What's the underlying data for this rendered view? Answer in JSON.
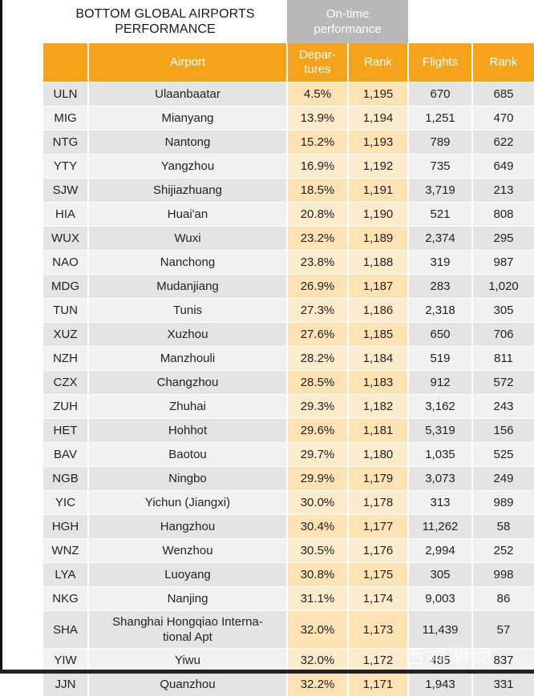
{
  "title_lines": [
    "BOTTOM GLOBAL AIRPORTS",
    "PERFORMANCE"
  ],
  "ontime_lines": [
    "On-time",
    "performance"
  ],
  "columns": {
    "airport": "Airport",
    "departures_lines": [
      "Depar-",
      "tures"
    ],
    "rank": "Rank",
    "flights": "Flights",
    "rank2": "Rank"
  },
  "rows": [
    {
      "code": "ULN",
      "airport": "Ulaanbaatar",
      "dep": "4.5%",
      "rank": "1,195",
      "flights": "670",
      "rank2": "685"
    },
    {
      "code": "MIG",
      "airport": "Mianyang",
      "dep": "13.9%",
      "rank": "1,194",
      "flights": "1,251",
      "rank2": "470"
    },
    {
      "code": "NTG",
      "airport": "Nantong",
      "dep": "15.2%",
      "rank": "1,193",
      "flights": "789",
      "rank2": "622"
    },
    {
      "code": "YTY",
      "airport": "Yangzhou",
      "dep": "16.9%",
      "rank": "1,192",
      "flights": "735",
      "rank2": "649"
    },
    {
      "code": "SJW",
      "airport": "Shijiazhuang",
      "dep": "18.5%",
      "rank": "1,191",
      "flights": "3,719",
      "rank2": "213"
    },
    {
      "code": "HIA",
      "airport": "Huai'an",
      "dep": "20.8%",
      "rank": "1,190",
      "flights": "521",
      "rank2": "808"
    },
    {
      "code": "WUX",
      "airport": "Wuxi",
      "dep": "23.2%",
      "rank": "1,189",
      "flights": "2,374",
      "rank2": "295"
    },
    {
      "code": "NAO",
      "airport": "Nanchong",
      "dep": "23.8%",
      "rank": "1,188",
      "flights": "319",
      "rank2": "987"
    },
    {
      "code": "MDG",
      "airport": "Mudanjiang",
      "dep": "26.9%",
      "rank": "1,187",
      "flights": "283",
      "rank2": "1,020"
    },
    {
      "code": "TUN",
      "airport": "Tunis",
      "dep": "27.3%",
      "rank": "1,186",
      "flights": "2,318",
      "rank2": "305"
    },
    {
      "code": "XUZ",
      "airport": "Xuzhou",
      "dep": "27.6%",
      "rank": "1,185",
      "flights": "650",
      "rank2": "706"
    },
    {
      "code": "NZH",
      "airport": "Manzhouli",
      "dep": "28.2%",
      "rank": "1,184",
      "flights": "519",
      "rank2": "811"
    },
    {
      "code": "CZX",
      "airport": "Changzhou",
      "dep": "28.5%",
      "rank": "1,183",
      "flights": "912",
      "rank2": "572"
    },
    {
      "code": "ZUH",
      "airport": "Zhuhai",
      "dep": "29.3%",
      "rank": "1,182",
      "flights": "3,162",
      "rank2": "243"
    },
    {
      "code": "HET",
      "airport": "Hohhot",
      "dep": "29.6%",
      "rank": "1,181",
      "flights": "5,319",
      "rank2": "156"
    },
    {
      "code": "BAV",
      "airport": "Baotou",
      "dep": "29.7%",
      "rank": "1,180",
      "flights": "1,035",
      "rank2": "525"
    },
    {
      "code": "NGB",
      "airport": "Ningbo",
      "dep": "29.9%",
      "rank": "1,179",
      "flights": "3,073",
      "rank2": "249"
    },
    {
      "code": "YIC",
      "airport": "Yichun (Jiangxi)",
      "dep": "30.0%",
      "rank": "1,178",
      "flights": "313",
      "rank2": "989"
    },
    {
      "code": "HGH",
      "airport": "Hangzhou",
      "dep": "30.4%",
      "rank": "1,177",
      "flights": "11,262",
      "rank2": "58"
    },
    {
      "code": "WNZ",
      "airport": "Wenzhou",
      "dep": "30.5%",
      "rank": "1,176",
      "flights": "2,994",
      "rank2": "252"
    },
    {
      "code": "LYA",
      "airport": "Luoyang",
      "dep": "30.8%",
      "rank": "1,175",
      "flights": "305",
      "rank2": "998"
    },
    {
      "code": "NKG",
      "airport": "Nanjing",
      "dep": "31.1%",
      "rank": "1,174",
      "flights": "9,003",
      "rank2": "86"
    },
    {
      "code": "SHA",
      "airport_lines": [
        "Shanghai Hongqiao Interna-",
        "tional Apt"
      ],
      "dep": "32.0%",
      "rank": "1,173",
      "flights": "11,439",
      "rank2": "57",
      "tall": true
    },
    {
      "code": "YIW",
      "airport": "Yiwu",
      "dep": "32.0%",
      "rank": "1,172",
      "flights": "485",
      "rank2": "837"
    },
    {
      "code": "JJN",
      "airport": "Quanzhou",
      "dep": "32.2%",
      "rank": "1,171",
      "flights": "1,943",
      "rank2": "331"
    }
  ],
  "watermark": "西祠胡同"
}
